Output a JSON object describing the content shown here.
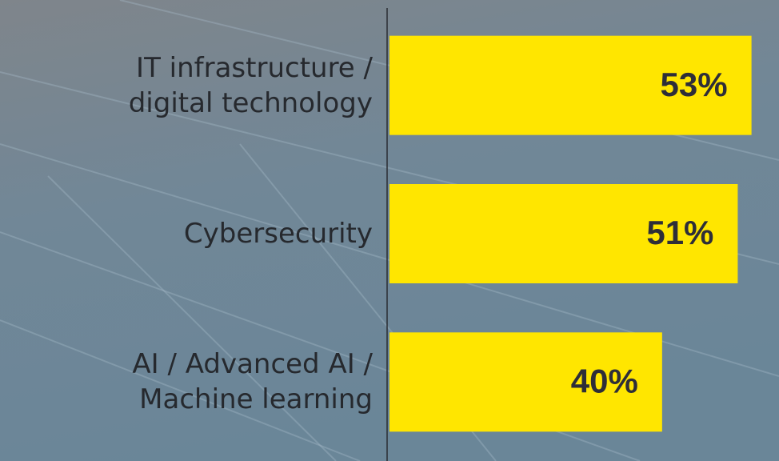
{
  "chart_data": {
    "type": "bar",
    "orientation": "horizontal",
    "categories": [
      "IT infrastructure /\ndigital technology",
      "Cybersecurity",
      "AI / Advanced AI /\nMachine learning"
    ],
    "values": [
      53,
      51,
      40
    ],
    "value_labels": [
      "53%",
      "51%",
      "40%"
    ],
    "color": "#ffe600",
    "xlim": [
      0,
      57
    ]
  }
}
